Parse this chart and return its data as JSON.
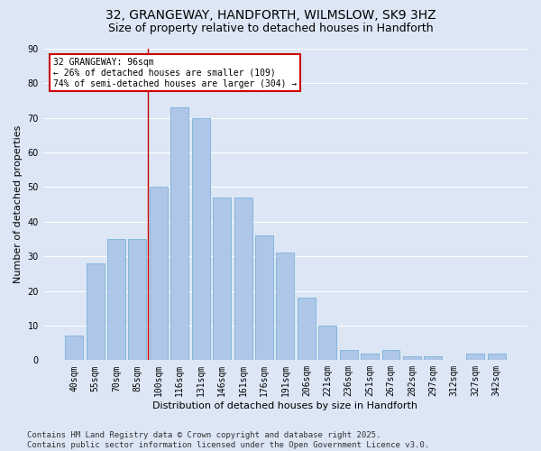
{
  "title_line1": "32, GRANGEWAY, HANDFORTH, WILMSLOW, SK9 3HZ",
  "title_line2": "Size of property relative to detached houses in Handforth",
  "xlabel": "Distribution of detached houses by size in Handforth",
  "ylabel": "Number of detached properties",
  "categories": [
    "40sqm",
    "55sqm",
    "70sqm",
    "85sqm",
    "100sqm",
    "116sqm",
    "131sqm",
    "146sqm",
    "161sqm",
    "176sqm",
    "191sqm",
    "206sqm",
    "221sqm",
    "236sqm",
    "251sqm",
    "267sqm",
    "282sqm",
    "297sqm",
    "312sqm",
    "327sqm",
    "342sqm"
  ],
  "values": [
    7,
    28,
    35,
    35,
    50,
    73,
    70,
    47,
    47,
    36,
    31,
    18,
    10,
    3,
    2,
    3,
    1,
    1,
    0,
    2,
    2
  ],
  "bar_color": "#aec6e8",
  "bar_edge_color": "#6aaad4",
  "background_color": "#dce6f5",
  "plot_bg_color": "#dce6f5",
  "grid_color": "#ffffff",
  "vline_color": "#cc0000",
  "vline_x": 3.5,
  "annotation_text": "32 GRANGEWAY: 96sqm\n← 26% of detached houses are smaller (109)\n74% of semi-detached houses are larger (304) →",
  "annotation_box_color": "#cc0000",
  "ylim": [
    0,
    90
  ],
  "yticks": [
    0,
    10,
    20,
    30,
    40,
    50,
    60,
    70,
    80,
    90
  ],
  "footer_line1": "Contains HM Land Registry data © Crown copyright and database right 2025.",
  "footer_line2": "Contains public sector information licensed under the Open Government Licence v3.0.",
  "title_fontsize": 10,
  "subtitle_fontsize": 9,
  "axis_label_fontsize": 8,
  "tick_fontsize": 7,
  "annotation_fontsize": 7,
  "footer_fontsize": 6.5
}
